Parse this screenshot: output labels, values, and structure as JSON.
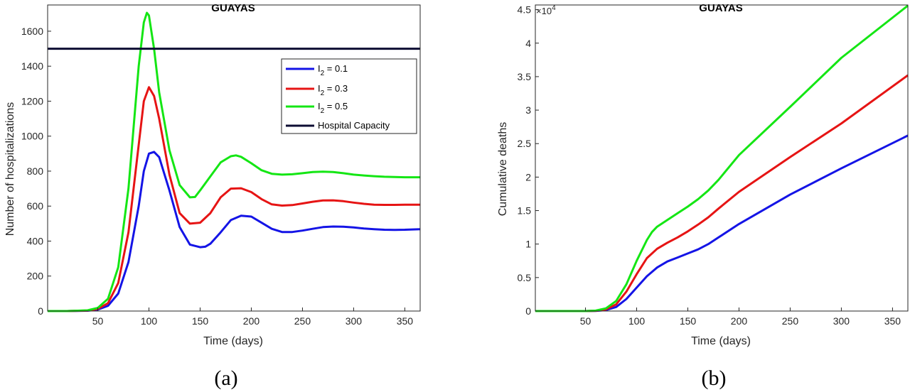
{
  "chart_data": [
    {
      "type": "line",
      "title": "GUAYAS",
      "caption": "(a)",
      "xlabel": "Time (days)",
      "ylabel": "Number of hospitalizations",
      "xlim": [
        1,
        365
      ],
      "ylim": [
        0,
        1750
      ],
      "xticks": [
        "50",
        "100",
        "150",
        "200",
        "250",
        "300",
        "350"
      ],
      "yticks": [
        "0",
        "200",
        "400",
        "600",
        "800",
        "1000",
        "1200",
        "1400",
        "1600"
      ],
      "legend": {
        "placement": "top-right"
      },
      "series": [
        {
          "name": "I",
          "subscript": "2",
          "suffix": " = 0.1",
          "color": "#1414e6",
          "x": [
            1,
            20,
            40,
            50,
            60,
            70,
            80,
            90,
            95,
            100,
            105,
            110,
            120,
            130,
            140,
            150,
            155,
            160,
            170,
            180,
            190,
            200,
            210,
            220,
            230,
            240,
            250,
            260,
            270,
            280,
            290,
            300,
            310,
            320,
            330,
            340,
            350,
            365
          ],
          "y": [
            0,
            0,
            2,
            8,
            30,
            100,
            280,
            600,
            800,
            900,
            910,
            880,
            690,
            480,
            380,
            365,
            368,
            385,
            450,
            520,
            545,
            540,
            505,
            470,
            452,
            452,
            460,
            470,
            480,
            483,
            482,
            478,
            472,
            468,
            465,
            464,
            465,
            468
          ]
        },
        {
          "name": "I",
          "subscript": "2",
          "suffix": " = 0.3",
          "color": "#e61414",
          "x": [
            1,
            20,
            40,
            50,
            60,
            70,
            80,
            90,
            95,
            100,
            105,
            110,
            120,
            130,
            140,
            150,
            160,
            170,
            180,
            190,
            200,
            210,
            220,
            230,
            240,
            250,
            260,
            270,
            280,
            290,
            300,
            310,
            320,
            330,
            340,
            350,
            365
          ],
          "y": [
            0,
            0,
            3,
            12,
            45,
            160,
            450,
            950,
            1200,
            1280,
            1230,
            1100,
            780,
            560,
            500,
            505,
            560,
            650,
            700,
            702,
            680,
            640,
            610,
            603,
            606,
            615,
            625,
            632,
            633,
            628,
            620,
            613,
            608,
            607,
            607,
            608,
            608
          ]
        },
        {
          "name": "I",
          "subscript": "2",
          "suffix": " = 0.5",
          "color": "#14e614",
          "x": [
            1,
            20,
            40,
            50,
            60,
            70,
            80,
            85,
            90,
            95,
            98,
            100,
            105,
            110,
            120,
            130,
            140,
            145,
            150,
            160,
            170,
            180,
            185,
            190,
            200,
            210,
            220,
            230,
            240,
            250,
            260,
            270,
            280,
            290,
            300,
            310,
            320,
            330,
            340,
            350,
            365
          ],
          "y": [
            0,
            0,
            4,
            18,
            70,
            250,
            700,
            1050,
            1400,
            1650,
            1705,
            1690,
            1500,
            1250,
            920,
            720,
            650,
            652,
            690,
            770,
            850,
            885,
            890,
            882,
            845,
            805,
            785,
            780,
            782,
            788,
            795,
            797,
            795,
            788,
            780,
            775,
            771,
            768,
            766,
            765,
            765
          ]
        },
        {
          "name": "Hospital Capacity",
          "color": "#0d0d33",
          "x": [
            1,
            365
          ],
          "y": [
            1500,
            1500
          ]
        }
      ]
    },
    {
      "type": "line",
      "title": "GUAYAS",
      "caption": "(b)",
      "xlabel": "Time (days)",
      "ylabel": "Cumulative deaths",
      "multiplier": "10",
      "multiplier_exp": "4",
      "xlim": [
        1,
        365
      ],
      "ylim": [
        0,
        45700
      ],
      "xticks": [
        "50",
        "100",
        "150",
        "200",
        "250",
        "300",
        "350"
      ],
      "yticks": [
        "0",
        "0.5",
        "1",
        "1.5",
        "2",
        "2.5",
        "3",
        "3.5",
        "4",
        "4.5"
      ],
      "series": [
        {
          "color": "#1414e6",
          "x": [
            1,
            50,
            60,
            70,
            80,
            90,
            100,
            110,
            120,
            130,
            140,
            150,
            160,
            170,
            180,
            200,
            250,
            300,
            365
          ],
          "y": [
            0,
            0,
            20,
            150,
            600,
            1800,
            3500,
            5200,
            6500,
            7400,
            8000,
            8600,
            9200,
            10000,
            11000,
            13000,
            17400,
            21300,
            26200
          ]
        },
        {
          "color": "#e61414",
          "x": [
            1,
            50,
            60,
            70,
            80,
            90,
            100,
            110,
            120,
            130,
            140,
            150,
            160,
            170,
            180,
            200,
            250,
            300,
            365
          ],
          "y": [
            0,
            0,
            40,
            250,
            1000,
            2900,
            5500,
            7900,
            9300,
            10200,
            11000,
            11900,
            12900,
            14000,
            15300,
            17800,
            23000,
            28000,
            35200
          ]
        },
        {
          "color": "#14e614",
          "x": [
            1,
            50,
            60,
            70,
            80,
            90,
            100,
            110,
            115,
            120,
            130,
            140,
            150,
            160,
            170,
            180,
            200,
            250,
            300,
            365
          ],
          "y": [
            0,
            0,
            60,
            400,
            1500,
            4000,
            7500,
            10600,
            11800,
            12600,
            13600,
            14600,
            15600,
            16700,
            18000,
            19600,
            23300,
            30500,
            37800,
            45600
          ]
        }
      ]
    }
  ]
}
